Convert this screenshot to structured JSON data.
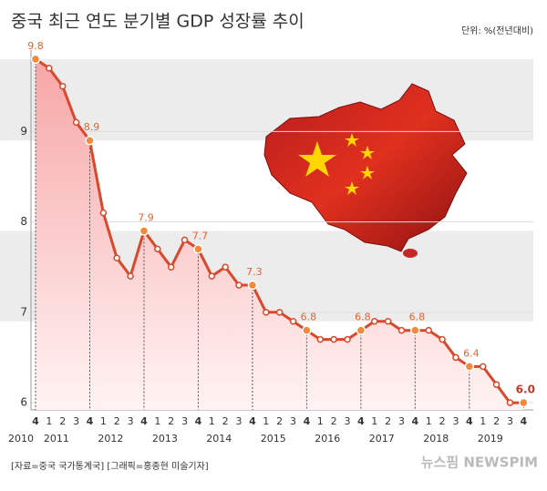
{
  "chart_data": {
    "type": "area",
    "title": "중국 최근 연도 분기별 GDP 성장률 추이",
    "unit": "단위: %(전년대비)",
    "source": "[자료=중국 국가통계국] [그래픽=홍종현 미술기자]",
    "logo": "뉴스핌 NEWSPIM",
    "categories": [
      "4",
      "1",
      "2",
      "3",
      "4",
      "1",
      "2",
      "3",
      "4",
      "1",
      "2",
      "3",
      "4",
      "1",
      "2",
      "3",
      "4",
      "1",
      "2",
      "3",
      "4",
      "1",
      "2",
      "3",
      "4",
      "1",
      "2",
      "3",
      "4",
      "1",
      "2",
      "3",
      "4",
      "1",
      "2",
      "3",
      "4"
    ],
    "years": [
      "2010",
      "2011",
      "2012",
      "2013",
      "2014",
      "2015",
      "2016",
      "2017",
      "2018",
      "2019"
    ],
    "series": [
      {
        "name": "GDP 성장률",
        "color": "#d9482b",
        "values": [
          9.8,
          9.7,
          9.5,
          9.1,
          8.9,
          8.1,
          7.6,
          7.4,
          7.9,
          7.7,
          7.5,
          7.8,
          7.7,
          7.4,
          7.5,
          7.3,
          7.3,
          7.0,
          7.0,
          6.9,
          6.8,
          6.7,
          6.7,
          6.7,
          6.8,
          6.9,
          6.9,
          6.8,
          6.8,
          6.8,
          6.7,
          6.5,
          6.4,
          6.4,
          6.2,
          6.0,
          6.0
        ],
        "value_labels": [
          "9.8",
          null,
          null,
          null,
          "8.9",
          null,
          null,
          null,
          "7.9",
          null,
          null,
          null,
          "7.7",
          null,
          null,
          null,
          "7.3",
          null,
          null,
          null,
          "6.8",
          null,
          null,
          null,
          "6.8",
          null,
          null,
          null,
          "6.8",
          null,
          null,
          null,
          "6.4",
          null,
          null,
          null,
          "6.0"
        ]
      }
    ],
    "ylim": [
      5.92,
      9.9
    ],
    "yticks": [
      6,
      7,
      8,
      9
    ],
    "grid": true
  }
}
